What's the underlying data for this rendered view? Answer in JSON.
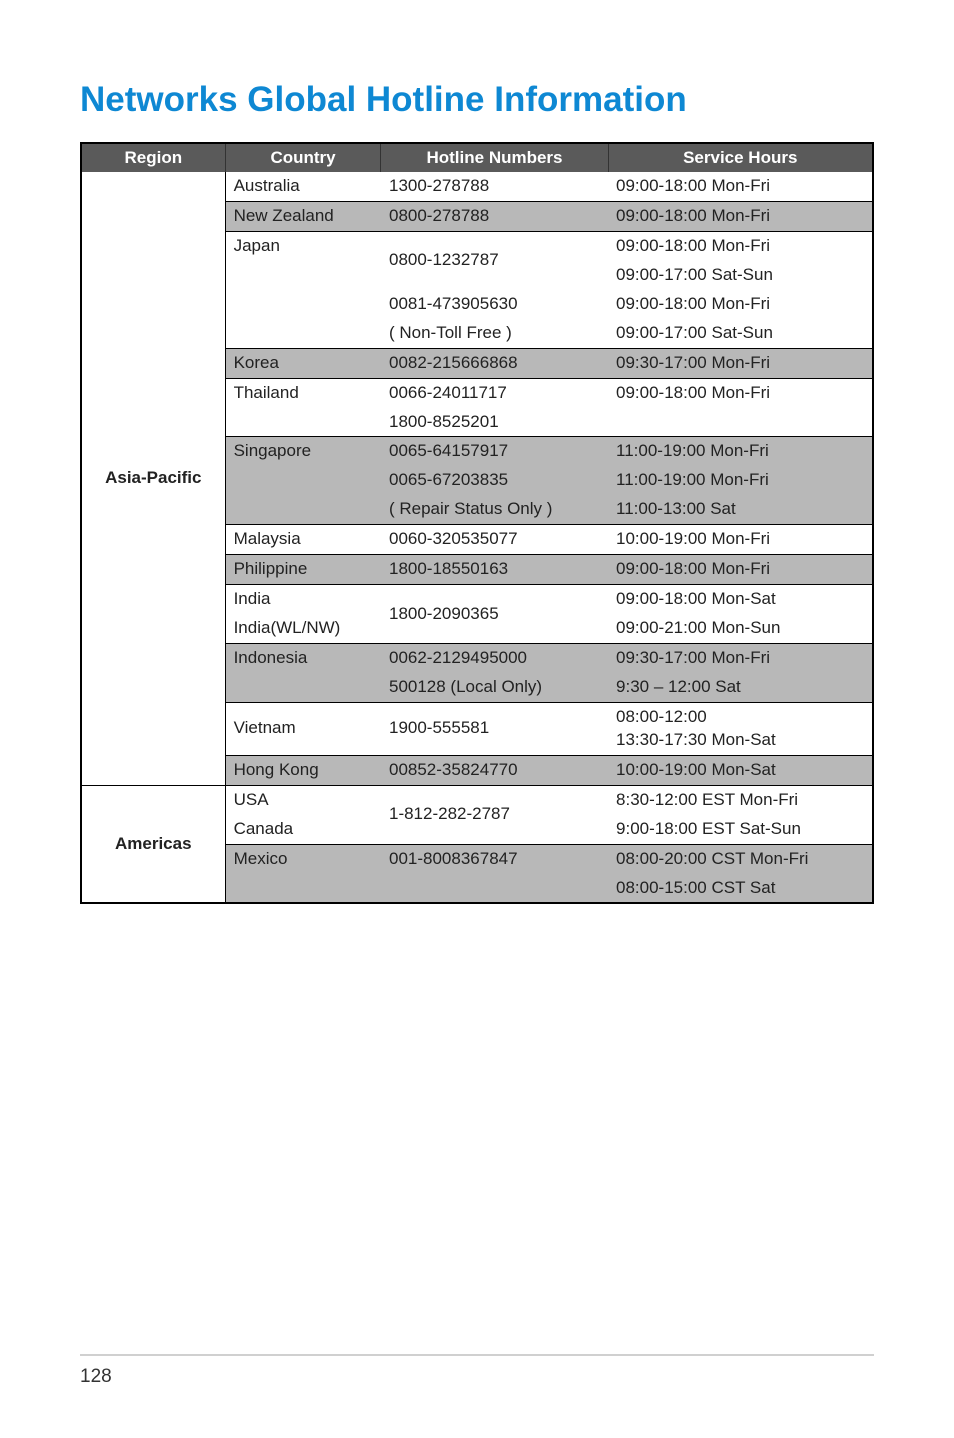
{
  "title": "Networks Global Hotline Information",
  "title_color": "#0e88d3",
  "headers": {
    "region": "Region",
    "country": "Country",
    "hotline": "Hotline Numbers",
    "service": "Service Hours"
  },
  "header_bg": "#5a5a5a",
  "header_fg": "#ffffff",
  "shade_bg": "#b8b8b8",
  "regions": {
    "asia_pacific": "Asia-Pacific",
    "americas": "Americas"
  },
  "rows": {
    "aus_c": "Australia",
    "aus_h": "1300-278788",
    "aus_s": "09:00-18:00 Mon-Fri",
    "nz_c": "New Zealand",
    "nz_h": "0800-278788",
    "nz_s": "09:00-18:00 Mon-Fri",
    "jp_c": "Japan",
    "jp_h1": "0800-1232787",
    "jp_s1": "09:00-18:00 Mon-Fri",
    "jp_s2": "09:00-17:00 Sat-Sun",
    "jp_h2a": "0081-473905630",
    "jp_h2b": "( Non-Toll Free )",
    "jp_s3": "09:00-18:00 Mon-Fri",
    "jp_s4": "09:00-17:00 Sat-Sun",
    "kr_c": "Korea",
    "kr_h": "0082-215666868",
    "kr_s": "09:30-17:00 Mon-Fri",
    "th_c": "Thailand",
    "th_h1": "0066-24011717",
    "th_h2": "1800-8525201",
    "th_s": "09:00-18:00 Mon-Fri",
    "sg_c": "Singapore",
    "sg_h1": "0065-64157917",
    "sg_s1": "11:00-19:00 Mon-Fri",
    "sg_h2": "0065-67203835",
    "sg_s2": "11:00-19:00 Mon-Fri",
    "sg_h3": "( Repair Status Only )",
    "sg_s3": "11:00-13:00 Sat",
    "my_c": "Malaysia",
    "my_h": "0060-320535077",
    "my_s": "10:00-19:00 Mon-Fri",
    "ph_c": "Philippine",
    "ph_h": "1800-18550163",
    "ph_s": "09:00-18:00 Mon-Fri",
    "in_c1": "India",
    "in_c2": "India(WL/NW)",
    "in_h": "1800-2090365",
    "in_s1": "09:00-18:00 Mon-Sat",
    "in_s2": "09:00-21:00 Mon-Sun",
    "id_c": "Indonesia",
    "id_h1": "0062-2129495000",
    "id_s1": "09:30-17:00 Mon-Fri",
    "id_h2": "500128 (Local Only)",
    "id_s2": "9:30 – 12:00 Sat",
    "vn_c": "Vietnam",
    "vn_h": "1900-555581",
    "vn_s1": "08:00-12:00",
    "vn_s2": "13:30-17:30 Mon-Sat",
    "hk_c": "Hong Kong",
    "hk_h": "00852-35824770",
    "hk_s": "10:00-19:00 Mon-Sat",
    "us_c": "USA",
    "ca_c": "Canada",
    "usca_h": "1-812-282-2787",
    "us_s": "8:30-12:00 EST Mon-Fri",
    "ca_s": "9:00-18:00 EST Sat-Sun",
    "mx_c": "Mexico",
    "mx_h": "001-8008367847",
    "mx_s1": "08:00-20:00 CST Mon-Fri",
    "mx_s2": "08:00-15:00 CST Sat"
  },
  "page_number": "128"
}
